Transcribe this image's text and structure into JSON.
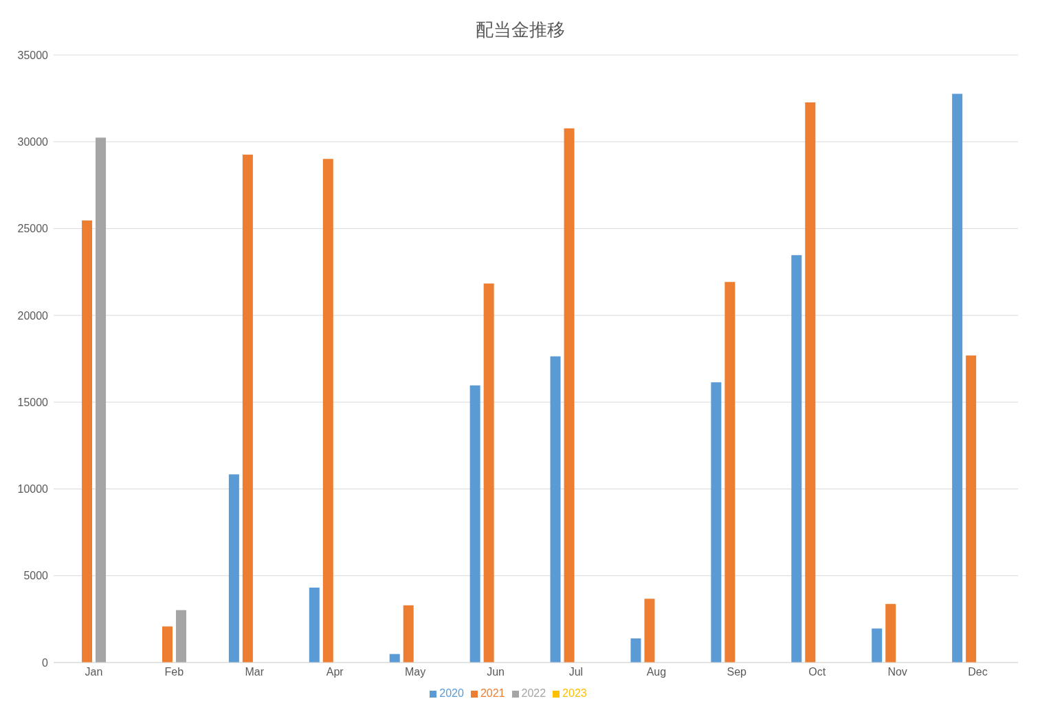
{
  "chart_data": {
    "type": "bar",
    "title": "配当金推移",
    "categories": [
      "Jan",
      "Feb",
      "Mar",
      "Apr",
      "May",
      "Jun",
      "Jul",
      "Aug",
      "Sep",
      "Oct",
      "Nov",
      "Dec"
    ],
    "series": [
      {
        "name": "2020",
        "color": "#5b9bd5",
        "values": [
          null,
          null,
          10840,
          4320,
          490,
          15970,
          17640,
          1390,
          16140,
          23470,
          1960,
          32760
        ]
      },
      {
        "name": "2021",
        "color": "#ed7d31",
        "values": [
          25470,
          2080,
          29260,
          29010,
          3300,
          21840,
          30770,
          3670,
          21920,
          32270,
          3380,
          17690
        ]
      },
      {
        "name": "2022",
        "color": "#a5a5a5",
        "values": [
          30240,
          3020,
          null,
          null,
          null,
          null,
          null,
          null,
          null,
          null,
          null,
          null
        ]
      },
      {
        "name": "2023",
        "color": "#ffc000",
        "values": [
          null,
          null,
          null,
          null,
          null,
          null,
          null,
          null,
          null,
          null,
          null,
          null
        ]
      }
    ],
    "ylim": [
      0,
      35000
    ],
    "yticks": [
      0,
      5000,
      10000,
      15000,
      20000,
      25000,
      30000,
      35000
    ],
    "grid": "y",
    "legend": "bottom"
  }
}
